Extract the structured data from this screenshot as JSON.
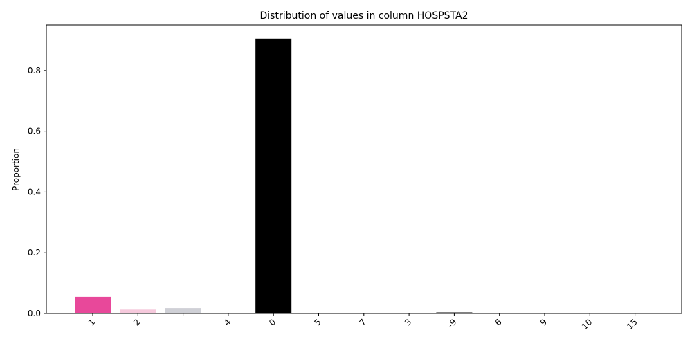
{
  "chart_data": {
    "type": "bar",
    "title": "Distribution of values in column HOSPSTA2",
    "xlabel": "",
    "ylabel": "Proportion",
    "ylim": [
      0,
      0.95
    ],
    "y_ticks": [
      "0.0",
      "0.2",
      "0.4",
      "0.6",
      "0.8"
    ],
    "grid": false,
    "categories": [
      "1",
      "2",
      "",
      "4",
      "0",
      "5",
      "7",
      "3",
      "-9",
      "6",
      "9",
      "10",
      "15"
    ],
    "values": [
      0.055,
      0.013,
      0.018,
      0.002,
      0.905,
      0.0005,
      0.001,
      0.001,
      0.004,
      0.0003,
      0.0002,
      0.0002,
      0.0001
    ],
    "colors": [
      "#e8489a",
      "#f6c9dc",
      "#cfd0d6",
      "#555555",
      "#000000",
      "#d98aa8",
      "#e58aa0",
      "#bfb0b8",
      "#606060",
      "#888888",
      "#999999",
      "#aaaaaa",
      "#bbbbbb"
    ]
  }
}
